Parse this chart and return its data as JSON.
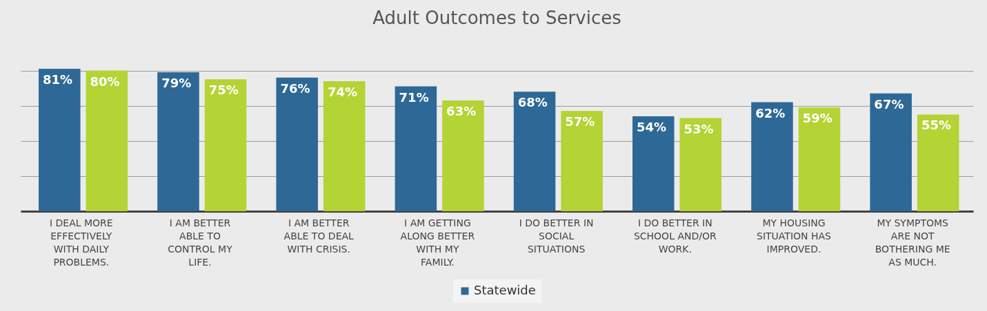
{
  "chart_data": {
    "type": "bar",
    "title": "Adult Outcomes to Services",
    "categories": [
      "I DEAL MORE EFFECTIVELY WITH DAILY PROBLEMS.",
      "I AM BETTER ABLE TO CONTROL MY LIFE.",
      "I AM BETTER ABLE TO DEAL WITH CRISIS.",
      "I AM GETTING ALONG BETTER WITH MY FAMILY.",
      "I DO BETTER IN SOCIAL SITUATIONS",
      "I DO BETTER IN SCHOOL AND/OR WORK.",
      "MY HOUSING SITUATION HAS IMPROVED.",
      "MY SYMPTOMS ARE NOT BOTHERING ME AS MUCH."
    ],
    "series": [
      {
        "name": "Statewide",
        "color": "#2e6896",
        "values": [
          81,
          79,
          76,
          71,
          68,
          54,
          62,
          67
        ],
        "value_labels": [
          "81%",
          "79%",
          "76%",
          "71%",
          "68%",
          "54%",
          "62%",
          "67%"
        ]
      },
      {
        "color": "#b4d334",
        "values": [
          80,
          75,
          74,
          63,
          57,
          53,
          59,
          55
        ],
        "value_labels": [
          "80%",
          "75%",
          "74%",
          "63%",
          "57%",
          "53%",
          "59%",
          "55%"
        ]
      }
    ],
    "grid": "y",
    "tick_labels": "x",
    "legend": "bottom"
  }
}
